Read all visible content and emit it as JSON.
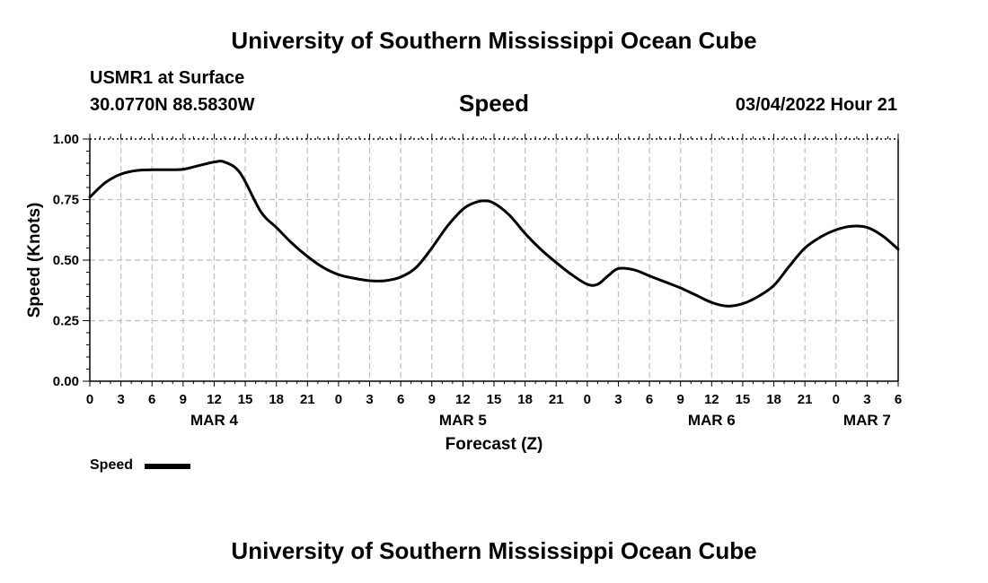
{
  "header": {
    "title": "University of Southern Mississippi Ocean Cube",
    "station": "USMR1 at Surface",
    "coords": "30.0770N  88.5830W",
    "parameter": "Speed",
    "datetime": "03/04/2022 Hour 21"
  },
  "footer": {
    "title": "University of Southern Mississippi Ocean Cube"
  },
  "legend": {
    "label": "Speed"
  },
  "colors": {
    "line": "#000000",
    "grid": "#bdbdbd",
    "axis": "#000000"
  },
  "chart_data": {
    "type": "line",
    "title": "Speed",
    "xlabel": "Forecast (Z)",
    "ylabel": "Speed (Knots)",
    "x_unit": "hours since MAR 4 00Z",
    "xlim": [
      0,
      78
    ],
    "ylim": [
      0,
      1.0
    ],
    "grid": true,
    "legend_position": "bottom-left",
    "x_ticks": [
      0,
      3,
      6,
      9,
      12,
      15,
      18,
      21,
      24,
      27,
      30,
      33,
      36,
      39,
      42,
      45,
      48,
      51,
      54,
      57,
      60,
      63,
      66,
      69,
      72,
      75,
      78
    ],
    "x_tick_labels": [
      "0",
      "3",
      "6",
      "9",
      "12",
      "15",
      "18",
      "21",
      "0",
      "3",
      "6",
      "9",
      "12",
      "15",
      "18",
      "21",
      "0",
      "3",
      "6",
      "9",
      "12",
      "15",
      "18",
      "21",
      "0",
      "3",
      "6"
    ],
    "day_labels": [
      {
        "x": 12,
        "label": "MAR 4"
      },
      {
        "x": 36,
        "label": "MAR 5"
      },
      {
        "x": 60,
        "label": "MAR 6"
      },
      {
        "x": 75,
        "label": "MAR 7"
      }
    ],
    "y_ticks": [
      0,
      0.25,
      0.5,
      0.75,
      1.0
    ],
    "y_tick_labels": [
      "0.00",
      "0.25",
      "0.50",
      "0.75",
      "1.00"
    ],
    "series": [
      {
        "name": "Speed",
        "x": [
          0,
          1.5,
          3,
          4.5,
          6,
          7.5,
          9,
          10.5,
          12,
          13,
          14.5,
          16.5,
          18,
          19.5,
          21,
          22.5,
          24,
          25.5,
          27,
          28.5,
          30,
          31.5,
          33,
          34.5,
          36,
          37,
          38,
          39,
          40.5,
          42,
          43.5,
          45,
          46.5,
          48,
          49,
          50,
          51,
          52.5,
          54,
          55.5,
          57,
          58.5,
          60,
          61.5,
          63,
          64.5,
          66,
          67.5,
          69,
          70.5,
          72,
          73.5,
          75,
          76.5,
          78
        ],
        "values": [
          0.76,
          0.82,
          0.855,
          0.87,
          0.873,
          0.873,
          0.875,
          0.89,
          0.905,
          0.905,
          0.86,
          0.7,
          0.635,
          0.57,
          0.515,
          0.47,
          0.44,
          0.425,
          0.415,
          0.415,
          0.43,
          0.47,
          0.55,
          0.64,
          0.71,
          0.735,
          0.745,
          0.735,
          0.685,
          0.61,
          0.545,
          0.49,
          0.44,
          0.4,
          0.4,
          0.435,
          0.465,
          0.46,
          0.435,
          0.41,
          0.385,
          0.355,
          0.325,
          0.31,
          0.32,
          0.35,
          0.395,
          0.475,
          0.55,
          0.595,
          0.625,
          0.64,
          0.635,
          0.6,
          0.545
        ]
      }
    ]
  }
}
